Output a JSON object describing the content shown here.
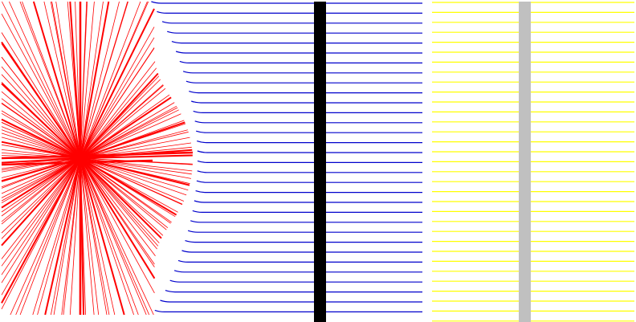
{
  "colors": {
    "background": "#ffffff",
    "starburst": "#ff0000",
    "blue_lines": "#0000cc",
    "black_bar": "#000000",
    "yellow_lines": "#ffff00",
    "gray_bar": "#c0c0c0"
  },
  "panels": {
    "starburst": {
      "name": "red-starburst-lines"
    },
    "blue": {
      "name": "blue-horizontal-lines",
      "line_count": 32
    },
    "yellow": {
      "name": "yellow-horizontal-lines",
      "line_count": 33
    }
  }
}
